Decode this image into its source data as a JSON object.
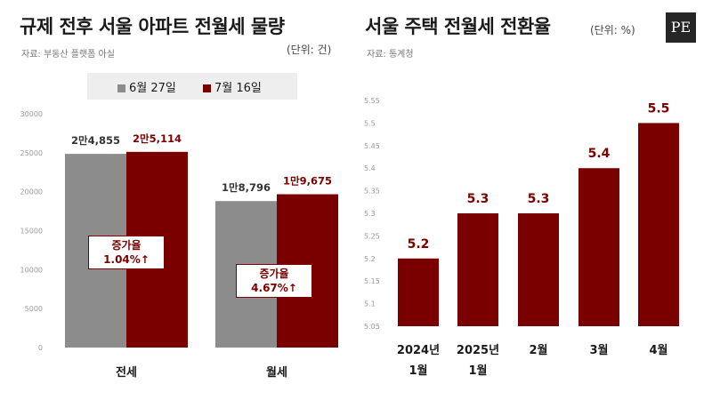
{
  "logo_text": "PE",
  "colors": {
    "june": "#8c8c8c",
    "july": "#7a0000",
    "accent": "#7a0000"
  },
  "left": {
    "title": "규제 전후 서울 아파트 전월세 물량",
    "unit": "(단위: 건)",
    "source": "자료: 부동산 플랫폼 아실"
  },
  "right": {
    "title": "서울 주택 전월세 전환율",
    "unit": "(단위: %)",
    "source": "자료: 통계청"
  },
  "chart_data": [
    {
      "type": "bar",
      "title": "규제 전후 서울 아파트 전월세 물량",
      "unit": "건",
      "categories": [
        "전세",
        "월세"
      ],
      "series": [
        {
          "name": "6월 27일",
          "values": [
            24855,
            18796
          ],
          "labels": [
            "2만4,855",
            "1만8,796"
          ]
        },
        {
          "name": "7월 16일",
          "values": [
            25114,
            19675
          ],
          "labels": [
            "2만5,114",
            "1만9,675"
          ]
        }
      ],
      "yticks": [
        0,
        5000,
        10000,
        15000,
        20000,
        25000,
        30000
      ],
      "ylim": [
        0,
        30000
      ],
      "legend": "top",
      "grid": false,
      "annotations": [
        {
          "category": "전세",
          "label": "증가율",
          "value": "1.04%↑"
        },
        {
          "category": "월세",
          "label": "증가율",
          "value": "4.67%↑"
        }
      ]
    },
    {
      "type": "bar",
      "title": "서울 주택 전월세 전환율",
      "unit": "%",
      "categories": [
        "2024년 1월",
        "2025년 1월",
        "2월",
        "3월",
        "4월"
      ],
      "category_lines": [
        [
          "2024년",
          "1월"
        ],
        [
          "2025년",
          "1월"
        ],
        [
          "2월"
        ],
        [
          "3월"
        ],
        [
          "4월"
        ]
      ],
      "values": [
        5.2,
        5.3,
        5.3,
        5.4,
        5.5
      ],
      "labels": [
        "5.2",
        "5.3",
        "5.3",
        "5.4",
        "5.5"
      ],
      "yticks": [
        "5.05",
        "5.1",
        "5.15",
        "5.2",
        "5.25",
        "5.3",
        "5.35",
        "5.4",
        "5.45",
        "5.5",
        "5.55"
      ],
      "ylim": [
        5.05,
        5.55
      ],
      "grid": false
    }
  ]
}
